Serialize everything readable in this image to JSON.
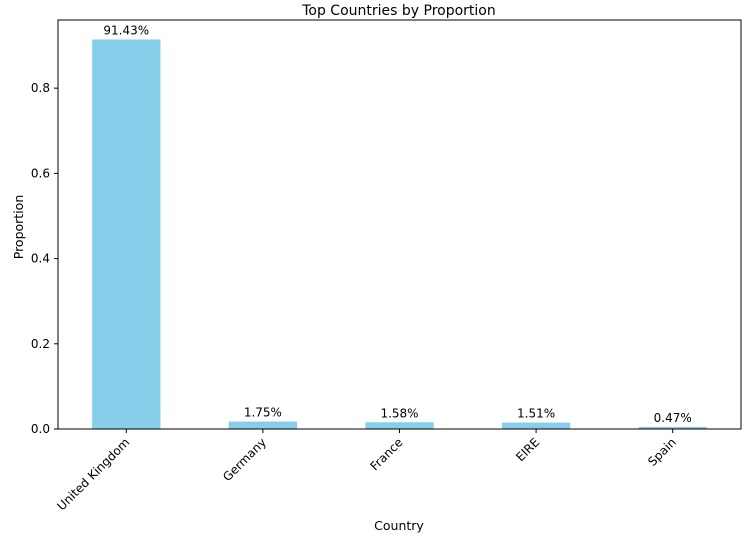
{
  "chart_data": {
    "type": "bar",
    "title": "Top Countries by Proportion",
    "xlabel": "Country",
    "ylabel": "Proportion",
    "categories": [
      "United Kingdom",
      "Germany",
      "France",
      "EIRE",
      "Spain"
    ],
    "values": [
      0.9143,
      0.0175,
      0.0158,
      0.0151,
      0.0047
    ],
    "data_labels": [
      "91.43%",
      "1.75%",
      "1.58%",
      "1.51%",
      "0.47%"
    ],
    "ylim": [
      0,
      0.96
    ],
    "yticks": [
      0.0,
      0.2,
      0.4,
      0.6,
      0.8
    ],
    "ytick_labels": [
      "0.0",
      "0.2",
      "0.4",
      "0.6",
      "0.8"
    ],
    "bar_color": "#87CEEB",
    "grid": false,
    "legend": "none"
  }
}
